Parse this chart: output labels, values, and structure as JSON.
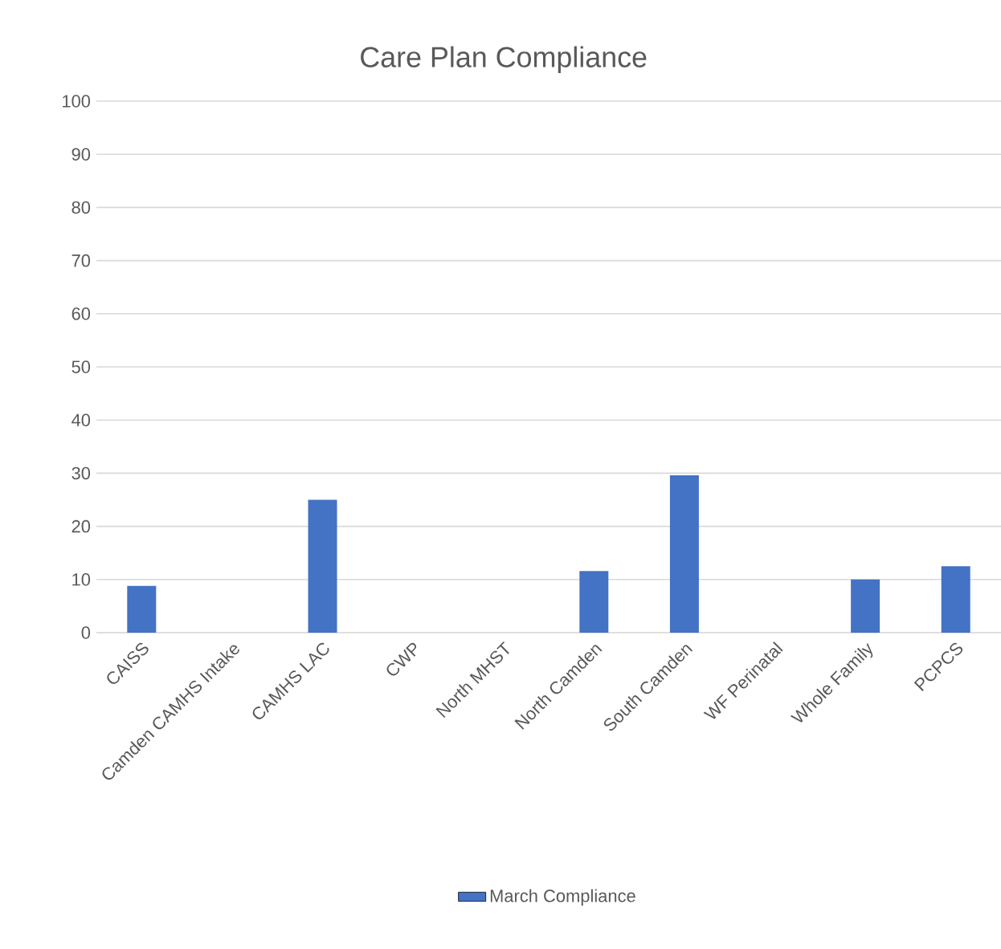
{
  "chart_data": {
    "type": "bar",
    "title": "Care Plan Compliance",
    "categories": [
      "CAISS",
      "Camden CAMHS Intake",
      "CAMHS LAC",
      "CWP",
      "North MHST",
      "North Camden",
      "South Camden",
      "WF Perinatal",
      "Whole Family",
      "PCPCS"
    ],
    "series": [
      {
        "name": "March Compliance",
        "color": "#4472c4",
        "values": [
          8.8,
          0,
          25,
          0,
          0,
          11.6,
          29.6,
          0,
          10,
          12.5
        ]
      }
    ],
    "ylim": [
      0,
      100
    ],
    "yticks": [
      0,
      10,
      20,
      30,
      40,
      50,
      60,
      70,
      80,
      90,
      100
    ],
    "grid": "y",
    "legend": "bottom"
  }
}
